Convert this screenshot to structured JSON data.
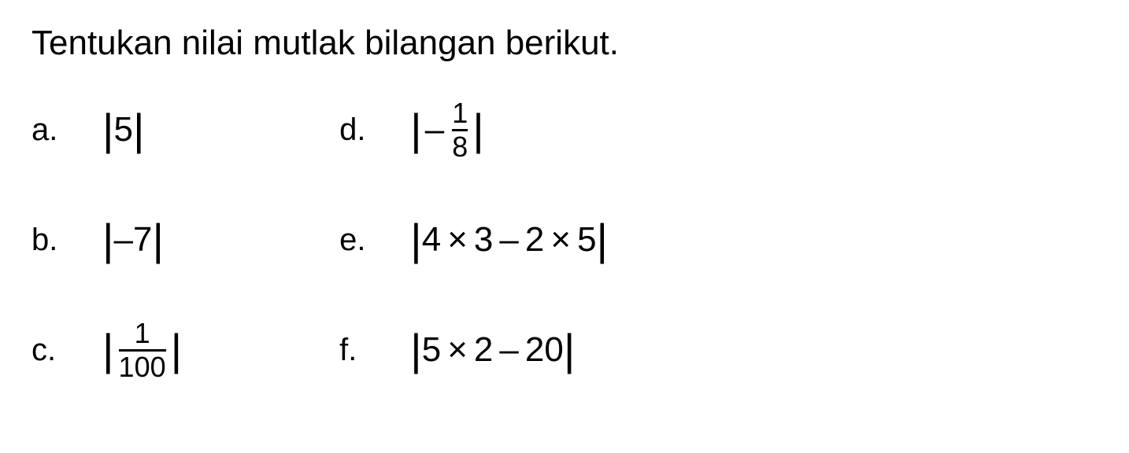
{
  "title": "Tentukan nilai mutlak bilangan berikut.",
  "problems": {
    "a": {
      "label": "a.",
      "absOpen": "|",
      "content": "5",
      "absClose": "|"
    },
    "b": {
      "label": "b.",
      "absOpen": "|",
      "minus": "–",
      "content": "7",
      "absClose": "|"
    },
    "c": {
      "label": "c.",
      "absOpen": "|",
      "num": "1",
      "den": "100",
      "absClose": "|"
    },
    "d": {
      "label": "d.",
      "absOpen": "|",
      "minus": "–",
      "num": "1",
      "den": "8",
      "absClose": "|"
    },
    "e": {
      "label": "e.",
      "absOpen": "|",
      "n1": "4",
      "op1": "×",
      "n2": "3",
      "op2": "–",
      "n3": "2",
      "op3": "×",
      "n4": "5",
      "absClose": "|"
    },
    "f": {
      "label": "f.",
      "absOpen": "|",
      "n1": "5",
      "op1": "×",
      "n2": "2",
      "op2": "–",
      "n3": "20",
      "absClose": "|"
    }
  },
  "styling": {
    "background_color": "#ffffff",
    "text_color": "#000000",
    "title_fontsize": 44,
    "label_fontsize": 40,
    "expression_fontsize": 44,
    "fraction_fontsize": 36,
    "font_family": "Arial"
  }
}
